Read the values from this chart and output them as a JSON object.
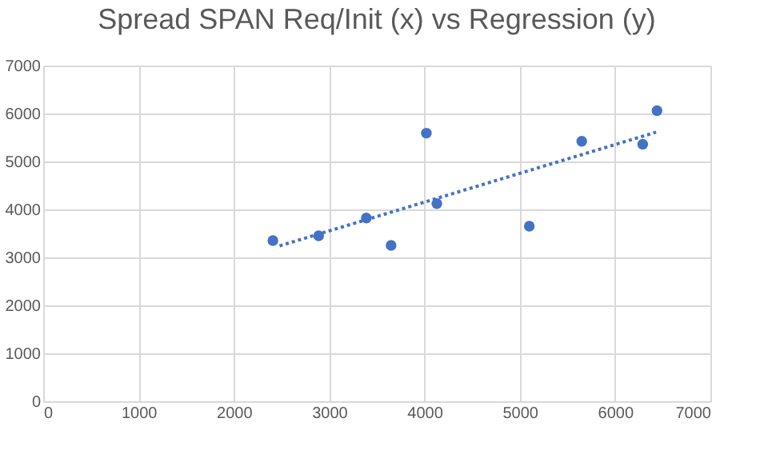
{
  "chart_data": {
    "type": "scatter",
    "title": "Spread SPAN Req/Init (x) vs Regression (y)",
    "series": [
      {
        "color": "#4472c4",
        "marker": "circle",
        "x": [
          2410,
          2890,
          3390,
          3650,
          4020,
          4130,
          5100,
          5650,
          6290,
          6440
        ],
        "values": [
          3350,
          3450,
          3820,
          3250,
          5590,
          4120,
          3650,
          5420,
          5360,
          6060
        ]
      },
      {
        "type": "line",
        "line_style": "dotted",
        "color": "#4472c4",
        "x": [
          2480,
          6430
        ],
        "values": [
          3240,
          5610
        ]
      }
    ],
    "xlim": [
      0,
      7000
    ],
    "xticks": [
      0,
      1000,
      2000,
      3000,
      4000,
      5000,
      6000,
      7000
    ],
    "ylim": [
      0,
      7000
    ],
    "yticks": [
      0,
      1000,
      2000,
      3000,
      4000,
      5000,
      6000,
      7000
    ],
    "grid": true
  }
}
